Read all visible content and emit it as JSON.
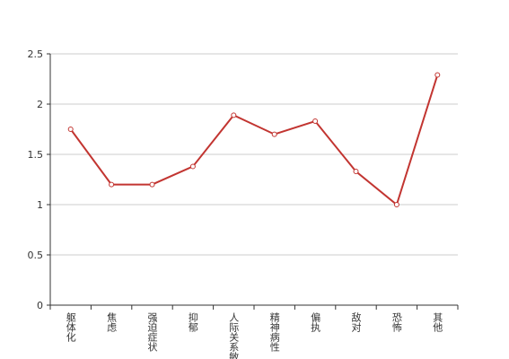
{
  "chart_data": {
    "type": "line",
    "categories": [
      "躯体化",
      "焦虑",
      "强迫症状",
      "抑郁",
      "人际关系敏感",
      "精神病性",
      "偏执",
      "敌对",
      "恐怖",
      "其他"
    ],
    "values": [
      1.75,
      1.2,
      1.2,
      1.38,
      1.89,
      1.7,
      1.83,
      1.33,
      1.0,
      2.29
    ],
    "color": "#c23531",
    "ylim": [
      0,
      2.5
    ],
    "yticks": [
      0,
      0.5,
      1,
      1.5,
      2,
      2.5
    ],
    "grid": true
  }
}
